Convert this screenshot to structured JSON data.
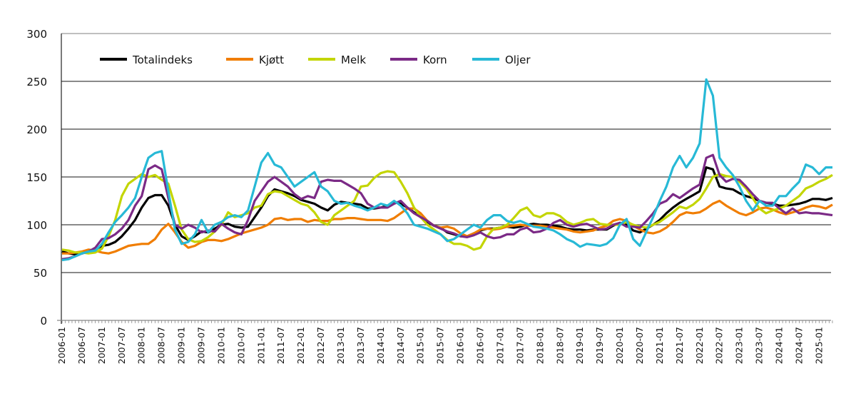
{
  "chart_data": {
    "type": "line",
    "title": "",
    "xlabel": "",
    "ylabel": "",
    "ylim": [
      0,
      300
    ],
    "yticks": [
      0,
      50,
      100,
      150,
      200,
      250,
      300
    ],
    "grid": "horizontal",
    "legend_position": "top-left",
    "xtick_labels": [
      "2006-01",
      "2006-07",
      "2007-01",
      "2007-07",
      "2008-01",
      "2008-07",
      "2009-01",
      "2009-07",
      "2010-01",
      "2010-07",
      "2011-01",
      "2011-07",
      "2012-01",
      "2012-07",
      "2013-01",
      "2013-07",
      "2014-01",
      "2014-07",
      "2015-01",
      "2015-07",
      "2016-01",
      "2016-07",
      "2017-01",
      "2017-07",
      "2018-01",
      "2018-07",
      "2019-01",
      "2019-07",
      "2020-01",
      "2020-07",
      "2021-01",
      "2021-07",
      "2022-01",
      "2022-07",
      "2023-01",
      "2023-07",
      "2024-01",
      "2024-07",
      "2025-01"
    ],
    "x": [
      "2006-01",
      "2006-03",
      "2006-05",
      "2006-07",
      "2006-09",
      "2006-11",
      "2007-01",
      "2007-03",
      "2007-05",
      "2007-07",
      "2007-09",
      "2007-11",
      "2008-01",
      "2008-03",
      "2008-05",
      "2008-07",
      "2008-09",
      "2008-11",
      "2009-01",
      "2009-03",
      "2009-05",
      "2009-07",
      "2009-09",
      "2009-11",
      "2010-01",
      "2010-03",
      "2010-05",
      "2010-07",
      "2010-09",
      "2010-11",
      "2011-01",
      "2011-03",
      "2011-05",
      "2011-07",
      "2011-09",
      "2011-11",
      "2012-01",
      "2012-03",
      "2012-05",
      "2012-07",
      "2012-09",
      "2012-11",
      "2013-01",
      "2013-03",
      "2013-05",
      "2013-07",
      "2013-09",
      "2013-11",
      "2014-01",
      "2014-03",
      "2014-05",
      "2014-07",
      "2014-09",
      "2014-11",
      "2015-01",
      "2015-03",
      "2015-05",
      "2015-07",
      "2015-09",
      "2015-11",
      "2016-01",
      "2016-03",
      "2016-05",
      "2016-07",
      "2016-09",
      "2016-11",
      "2017-01",
      "2017-03",
      "2017-05",
      "2017-07",
      "2017-09",
      "2017-11",
      "2018-01",
      "2018-03",
      "2018-05",
      "2018-07",
      "2018-09",
      "2018-11",
      "2019-01",
      "2019-03",
      "2019-05",
      "2019-07",
      "2019-09",
      "2019-11",
      "2020-01",
      "2020-03",
      "2020-05",
      "2020-07",
      "2020-09",
      "2020-11",
      "2021-01",
      "2021-03",
      "2021-05",
      "2021-07",
      "2021-09",
      "2021-11",
      "2022-01",
      "2022-03",
      "2022-05",
      "2022-07",
      "2022-09",
      "2022-11",
      "2023-01",
      "2023-03",
      "2023-05",
      "2023-07",
      "2023-09",
      "2023-11",
      "2024-01",
      "2024-03",
      "2024-05",
      "2024-07",
      "2024-09",
      "2024-11",
      "2025-01",
      "2025-03",
      "2025-05"
    ],
    "series": [
      {
        "name": "Totalindeks",
        "color": "#000000",
        "values": [
          72,
          70,
          69,
          70,
          72,
          74,
          78,
          79,
          82,
          88,
          96,
          105,
          118,
          128,
          131,
          131,
          120,
          100,
          88,
          84,
          88,
          93,
          92,
          96,
          100,
          101,
          98,
          97,
          98,
          108,
          118,
          130,
          137,
          135,
          133,
          130,
          126,
          124,
          122,
          118,
          115,
          121,
          124,
          123,
          122,
          121,
          117,
          117,
          118,
          120,
          124,
          122,
          118,
          113,
          108,
          103,
          99,
          97,
          92,
          90,
          88,
          88,
          91,
          94,
          96,
          96,
          97,
          98,
          97,
          98,
          100,
          101,
          100,
          100,
          99,
          98,
          96,
          95,
          95,
          94,
          95,
          95,
          95,
          99,
          102,
          100,
          94,
          92,
          96,
          100,
          105,
          112,
          118,
          123,
          127,
          131,
          135,
          160,
          158,
          140,
          138,
          137,
          133,
          130,
          128,
          125,
          123,
          122,
          120,
          120,
          121,
          122,
          124,
          127,
          127,
          126,
          128
        ]
      },
      {
        "name": "Kjøtt",
        "color": "#f07d00",
        "values": [
          70,
          70,
          71,
          72,
          74,
          73,
          71,
          70,
          72,
          75,
          78,
          79,
          80,
          80,
          85,
          95,
          101,
          92,
          82,
          76,
          78,
          82,
          84,
          84,
          83,
          85,
          88,
          91,
          93,
          95,
          97,
          100,
          106,
          107,
          105,
          106,
          106,
          103,
          105,
          104,
          104,
          106,
          106,
          107,
          107,
          106,
          105,
          105,
          105,
          104,
          107,
          112,
          117,
          117,
          112,
          104,
          99,
          97,
          98,
          96,
          91,
          88,
          91,
          95,
          96,
          95,
          96,
          98,
          99,
          100,
          99,
          99,
          99,
          98,
          97,
          96,
          95,
          93,
          92,
          93,
          94,
          97,
          99,
          104,
          106,
          104,
          99,
          95,
          92,
          91,
          93,
          97,
          103,
          110,
          113,
          112,
          113,
          117,
          122,
          125,
          120,
          116,
          112,
          110,
          113,
          117,
          118,
          116,
          113,
          111,
          113,
          115,
          118,
          120,
          119,
          117,
          121
        ]
      },
      {
        "name": "Melk",
        "color": "#c3d500",
        "values": [
          74,
          73,
          71,
          71,
          70,
          71,
          75,
          88,
          105,
          130,
          143,
          148,
          153,
          150,
          152,
          147,
          143,
          120,
          95,
          85,
          82,
          83,
          87,
          93,
          100,
          113,
          108,
          110,
          112,
          118,
          120,
          132,
          135,
          134,
          130,
          126,
          122,
          120,
          113,
          103,
          100,
          110,
          115,
          120,
          125,
          140,
          141,
          149,
          154,
          156,
          155,
          145,
          133,
          118,
          108,
          100,
          95,
          90,
          84,
          80,
          80,
          78,
          74,
          76,
          88,
          96,
          97,
          100,
          107,
          115,
          118,
          110,
          108,
          112,
          112,
          109,
          103,
          100,
          102,
          105,
          106,
          101,
          100,
          100,
          100,
          103,
          100,
          98,
          97,
          100,
          103,
          108,
          113,
          119,
          117,
          121,
          127,
          138,
          150,
          153,
          151,
          150,
          145,
          138,
          128,
          117,
          112,
          115,
          117,
          120,
          125,
          130,
          138,
          141,
          145,
          148,
          152
        ]
      },
      {
        "name": "Korn",
        "color": "#7b2a86",
        "values": [
          64,
          65,
          67,
          70,
          72,
          76,
          85,
          86,
          90,
          96,
          105,
          120,
          130,
          158,
          162,
          158,
          128,
          100,
          96,
          100,
          97,
          92,
          94,
          93,
          101,
          96,
          92,
          90,
          105,
          125,
          135,
          145,
          150,
          145,
          140,
          132,
          127,
          130,
          128,
          145,
          147,
          146,
          146,
          142,
          138,
          133,
          122,
          118,
          118,
          118,
          122,
          125,
          118,
          112,
          108,
          104,
          99,
          96,
          93,
          91,
          88,
          87,
          89,
          92,
          88,
          86,
          87,
          90,
          90,
          95,
          97,
          92,
          93,
          96,
          102,
          105,
          100,
          98,
          100,
          101,
          98,
          95,
          96,
          100,
          102,
          98,
          98,
          97,
          104,
          112,
          122,
          125,
          132,
          128,
          133,
          138,
          142,
          170,
          173,
          152,
          145,
          148,
          147,
          140,
          132,
          125,
          123,
          123,
          117,
          112,
          117,
          112,
          113,
          112,
          112,
          111,
          110
        ]
      },
      {
        "name": "Oljer",
        "color": "#27b9d6",
        "values": [
          63,
          64,
          67,
          70,
          72,
          73,
          80,
          92,
          103,
          110,
          118,
          128,
          150,
          170,
          175,
          177,
          135,
          95,
          80,
          82,
          90,
          105,
          92,
          100,
          103,
          108,
          110,
          108,
          115,
          140,
          165,
          175,
          163,
          160,
          150,
          140,
          145,
          150,
          155,
          140,
          135,
          125,
          122,
          123,
          120,
          118,
          115,
          118,
          122,
          120,
          125,
          120,
          112,
          100,
          98,
          96,
          93,
          90,
          83,
          85,
          90,
          95,
          100,
          97,
          105,
          110,
          110,
          104,
          102,
          104,
          101,
          98,
          97,
          96,
          94,
          90,
          85,
          82,
          77,
          80,
          79,
          78,
          80,
          86,
          100,
          106,
          85,
          78,
          93,
          108,
          125,
          140,
          160,
          172,
          160,
          170,
          185,
          252,
          235,
          170,
          160,
          152,
          140,
          125,
          115,
          125,
          120,
          120,
          130,
          130,
          138,
          145,
          163,
          160,
          153,
          160,
          160
        ]
      }
    ]
  }
}
